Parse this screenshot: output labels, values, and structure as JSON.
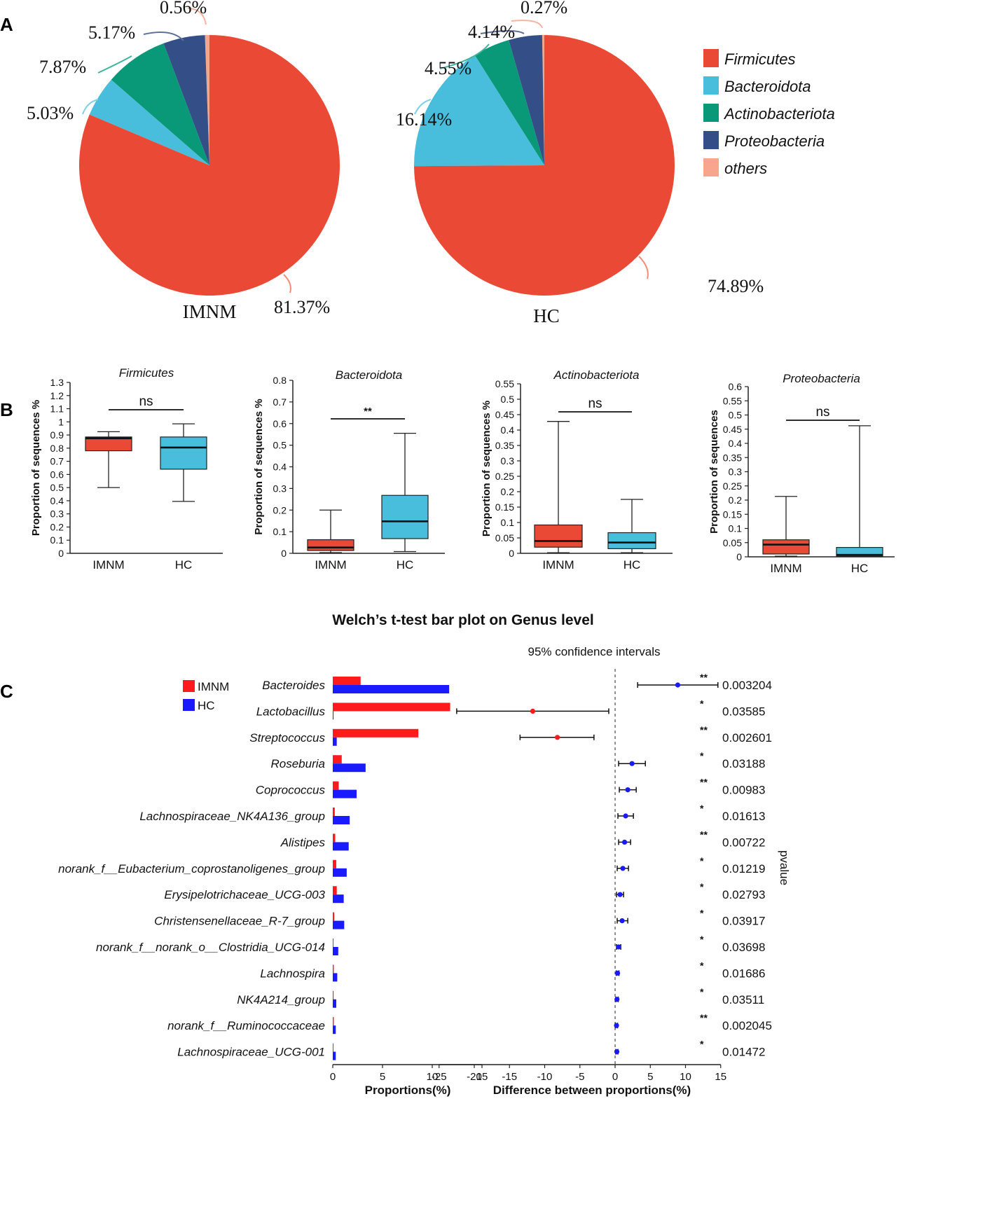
{
  "panels": {
    "a": "A",
    "b": "B",
    "c": "C"
  },
  "colors": {
    "firmicutes": "#ea4a35",
    "bacteroidota": "#48bedc",
    "actinobacteriota": "#099978",
    "proteobacteria": "#344e87",
    "others": "#f7a58c",
    "imnm_bar": "#ff1b1b",
    "hc_bar": "#1a1aff"
  },
  "chart_data": [
    {
      "id": "pie-imnm",
      "type": "pie",
      "title": "IMNM",
      "labels": [
        "Firmicutes",
        "Bacteroidota",
        "Actinobacteriota",
        "Proteobacteria",
        "others"
      ],
      "values": [
        81.37,
        5.03,
        7.87,
        5.17,
        0.56
      ],
      "value_labels": [
        "81.37%",
        "5.03%",
        "7.87%",
        "5.17%",
        "0.56%"
      ]
    },
    {
      "id": "pie-hc",
      "type": "pie",
      "title": "HC",
      "labels": [
        "Firmicutes",
        "Bacteroidota",
        "Actinobacteriota",
        "Proteobacteria",
        "others"
      ],
      "values": [
        74.89,
        16.14,
        4.55,
        4.14,
        0.27
      ],
      "value_labels": [
        "74.89%",
        "16.14%",
        "4.55%",
        "4.14%",
        "0.27%"
      ]
    },
    {
      "id": "legend",
      "type": "legend",
      "entries": [
        "Firmicutes",
        "Bacteroidota",
        "Actinobacteriota",
        "Proteobacteria",
        "others"
      ]
    },
    {
      "id": "box-firmicutes",
      "type": "box",
      "title": "Firmicutes",
      "ylabel": "Proportion of sequences %",
      "ylim": [
        0,
        1.3
      ],
      "yticks": [
        "0",
        "0.1",
        "0.2",
        "0.3",
        "0.4",
        "0.5",
        "0.6",
        "0.7",
        "0.8",
        "0.9",
        "1",
        "1.1",
        "1.2",
        "1.3"
      ],
      "categories": [
        "IMNM",
        "HC"
      ],
      "boxes": [
        {
          "min": 0.5,
          "q1": 0.78,
          "median": 0.875,
          "q3": 0.885,
          "max": 0.925
        },
        {
          "min": 0.395,
          "q1": 0.64,
          "median": 0.805,
          "q3": 0.885,
          "max": 0.985
        }
      ],
      "significance": "ns"
    },
    {
      "id": "box-bacteroidota",
      "type": "box",
      "title": "Bacteroidota",
      "ylabel": "Proportion of sequences %",
      "ylim": [
        0,
        0.8
      ],
      "yticks": [
        "0",
        "0.1",
        "0.2",
        "0.3",
        "0.4",
        "0.5",
        "0.6",
        "0.7",
        "0.8"
      ],
      "categories": [
        "IMNM",
        "HC"
      ],
      "boxes": [
        {
          "min": 0.003,
          "q1": 0.013,
          "median": 0.027,
          "q3": 0.063,
          "max": 0.2
        },
        {
          "min": 0.008,
          "q1": 0.068,
          "median": 0.148,
          "q3": 0.268,
          "max": 0.555
        }
      ],
      "significance": "**"
    },
    {
      "id": "box-actinobacteriota",
      "type": "box",
      "title": "Actinobacteriota",
      "ylabel": "Proportion of sequences %",
      "ylim": [
        0,
        0.55
      ],
      "yticks": [
        "0",
        "0.05",
        "0.1",
        "0.15",
        "0.2",
        "0.25",
        "0.3",
        "0.35",
        "0.4",
        "0.45",
        "0.5",
        "0.55"
      ],
      "categories": [
        "IMNM",
        "HC"
      ],
      "boxes": [
        {
          "min": 0.002,
          "q1": 0.02,
          "median": 0.04,
          "q3": 0.092,
          "max": 0.428
        },
        {
          "min": 0.002,
          "q1": 0.015,
          "median": 0.035,
          "q3": 0.067,
          "max": 0.175
        }
      ],
      "significance": "ns"
    },
    {
      "id": "box-proteobacteria",
      "type": "box",
      "title": "Proteobacteria",
      "ylabel": "Proportion of sequences",
      "ylim": [
        0,
        0.6
      ],
      "yticks": [
        "0",
        "0.05",
        "0.1",
        "0.15",
        "0.2",
        "0.25",
        "0.3",
        "0.35",
        "0.4",
        "0.45",
        "0.5",
        "0.55",
        "0.6"
      ],
      "categories": [
        "IMNM",
        "HC"
      ],
      "boxes": [
        {
          "min": 0.002,
          "q1": 0.01,
          "median": 0.043,
          "q3": 0.06,
          "max": 0.213
        },
        {
          "min": 0.001,
          "q1": 0.002,
          "median": 0.007,
          "q3": 0.033,
          "max": 0.462
        }
      ],
      "significance": "ns"
    },
    {
      "id": "welch",
      "type": "bar",
      "title": "Welch’s t-test bar plot on Genus level",
      "ci_label": "95% confidence intervals",
      "xlabel_left": "Proportions(%)",
      "xlabel_right": "Difference between proportions(%)",
      "pvalue_label": "pvalue",
      "legend": [
        "IMNM",
        "HC"
      ],
      "left_xticks": [
        "0",
        "5",
        "10",
        "15"
      ],
      "right_xticks": [
        "-25",
        "-20",
        "-15",
        "-10",
        "-5",
        "0",
        "5",
        "10",
        "15"
      ],
      "genera": [
        "Bacteroides",
        "Lactobacillus",
        "Streptococcus",
        "Roseburia",
        "Coprococcus",
        "Lachnospiraceae_NK4A136_group",
        "Alistipes",
        "norank_f__Eubacterium_coprostanoligenes_group",
        "Erysipelotrichaceae_UCG-003",
        "Christensenellaceae_R-7_group",
        "norank_f__norank_o__Clostridia_UCG-014",
        "Lachnospira",
        "NK4A214_group",
        "norank_f__Ruminococcaceae",
        "Lachnospiraceae_UCG-001"
      ],
      "series": [
        {
          "name": "IMNM",
          "values": [
            2.8,
            11.8,
            8.6,
            0.9,
            0.6,
            0.2,
            0.25,
            0.35,
            0.4,
            0.15,
            0.05,
            0.1,
            0.08,
            0.1,
            0.05
          ]
        },
        {
          "name": "HC",
          "values": [
            11.7,
            0.05,
            0.4,
            3.3,
            2.4,
            1.7,
            1.6,
            1.4,
            1.1,
            1.15,
            0.55,
            0.45,
            0.35,
            0.3,
            0.3
          ]
        }
      ],
      "diff": [
        8.9,
        -11.7,
        -8.2,
        2.4,
        1.8,
        1.5,
        1.35,
        1.1,
        0.7,
        1.0,
        0.5,
        0.35,
        0.27,
        0.2,
        0.25
      ],
      "ci_low": [
        3.2,
        -22.5,
        -13.5,
        0.5,
        0.6,
        0.4,
        0.5,
        0.3,
        0.2,
        0.3,
        0.2,
        0.15,
        0.1,
        0.05,
        0.1
      ],
      "ci_high": [
        14.6,
        -0.9,
        -3.0,
        4.3,
        3.0,
        2.6,
        2.2,
        1.9,
        1.2,
        1.8,
        0.8,
        0.55,
        0.45,
        0.35,
        0.4
      ],
      "dot_colors": [
        "hc",
        "imnm",
        "imnm",
        "hc",
        "hc",
        "hc",
        "hc",
        "hc",
        "hc",
        "hc",
        "hc",
        "hc",
        "hc",
        "hc",
        "hc"
      ],
      "stars": [
        "**",
        "*",
        "**",
        "*",
        "**",
        "*",
        "**",
        "*",
        "*",
        "*",
        "*",
        "*",
        "*",
        "**",
        "*"
      ],
      "pvalues": [
        "0.003204",
        "0.03585",
        "0.002601",
        "0.03188",
        "0.00983",
        "0.01613",
        "0.00722",
        "0.01219",
        "0.02793",
        "0.03917",
        "0.03698",
        "0.01686",
        "0.03511",
        "0.002045",
        "0.01472"
      ]
    }
  ]
}
